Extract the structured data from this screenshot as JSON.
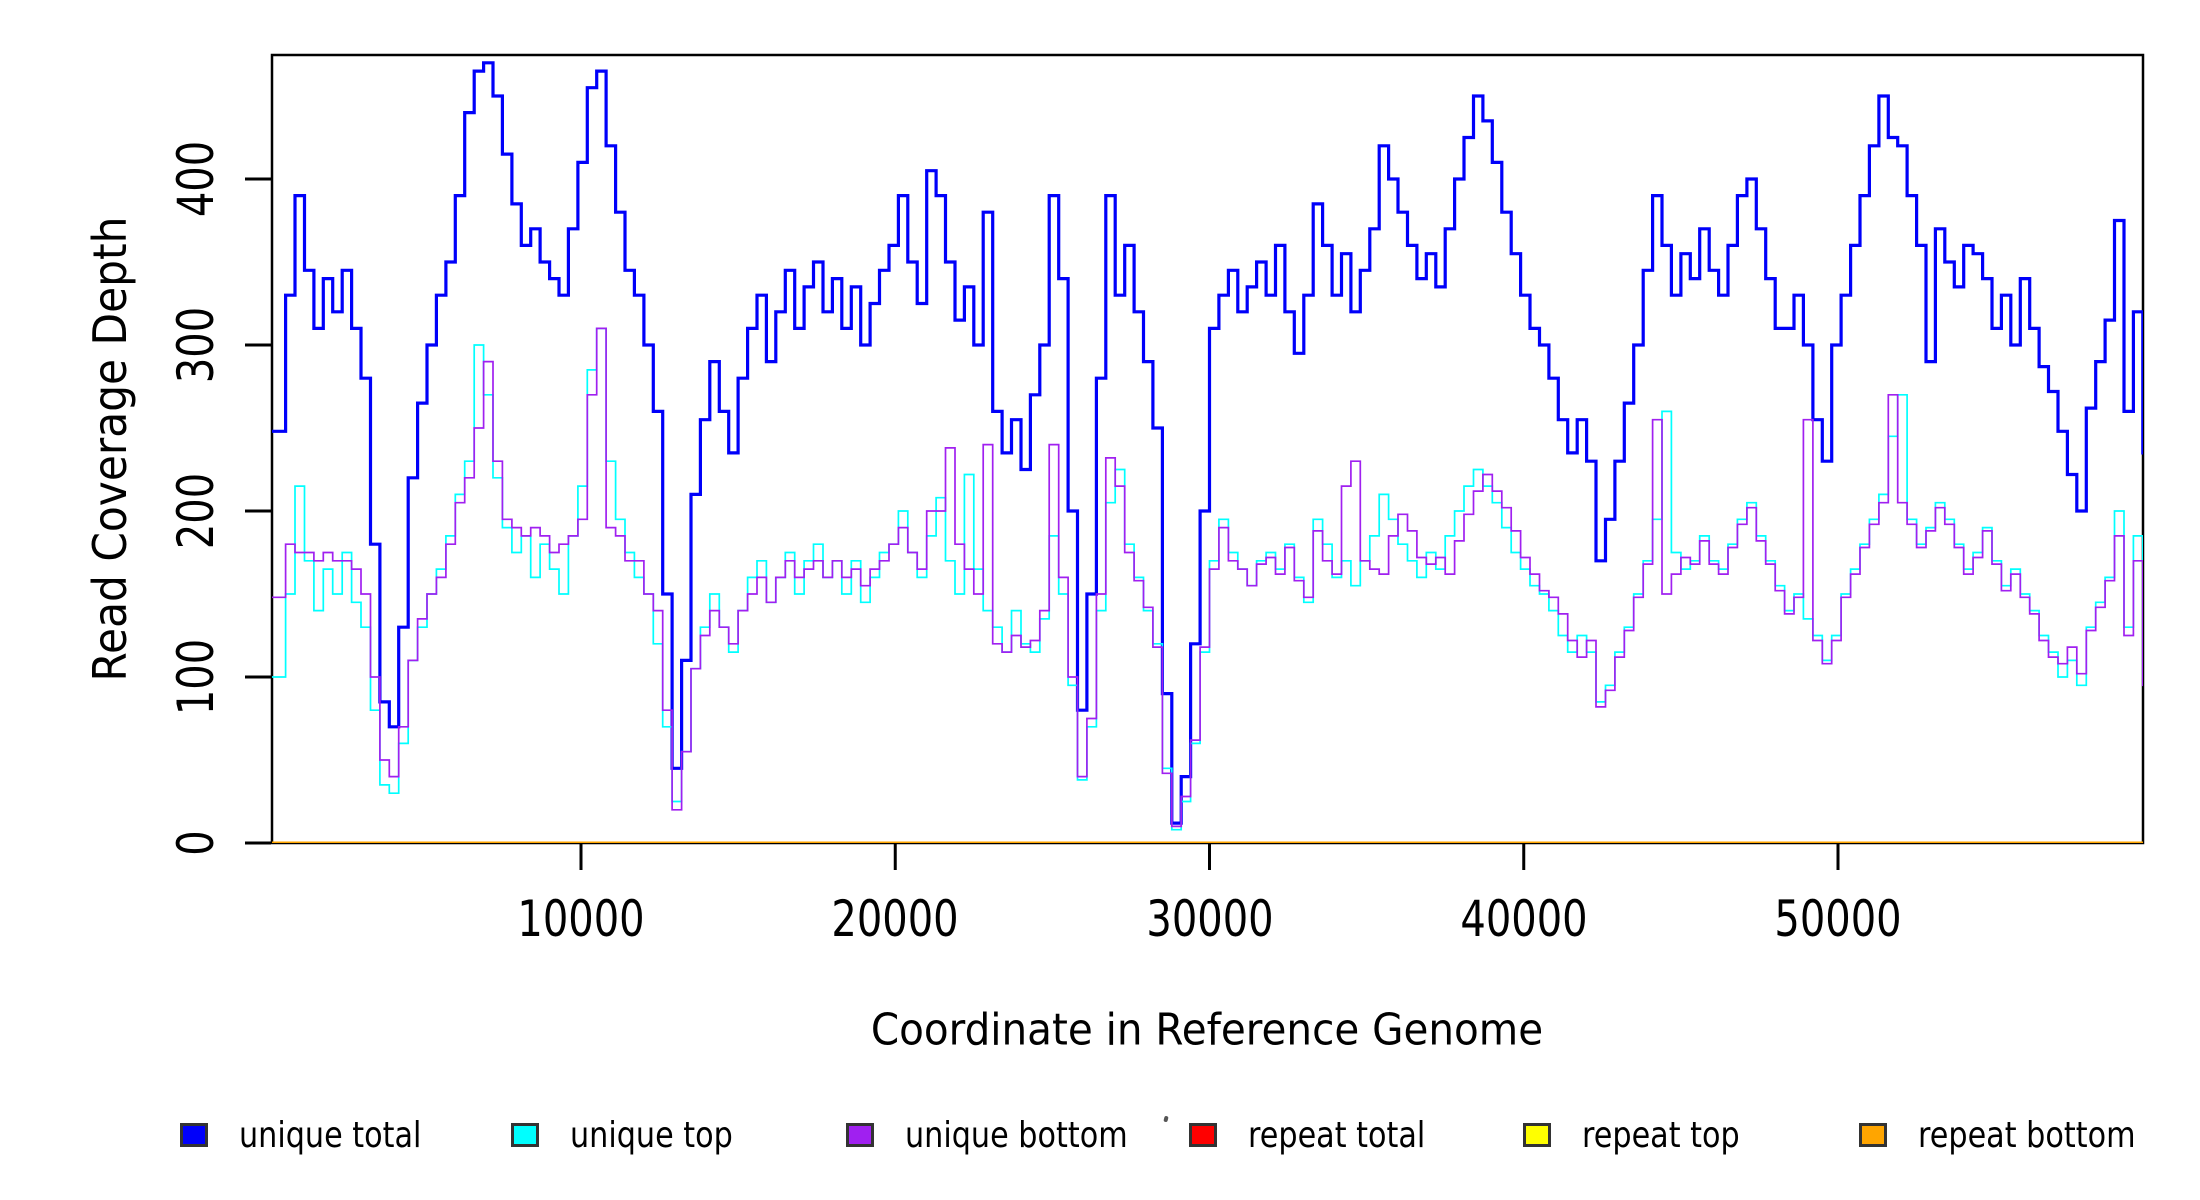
{
  "chart_data": {
    "type": "line",
    "subtype": "step",
    "title": "",
    "xlabel": "Coordinate in Reference Genome",
    "ylabel": "Read Coverage Depth",
    "xlim": [
      0,
      59700
    ],
    "ylim": [
      0,
      475
    ],
    "x_ticks": [
      10000,
      20000,
      30000,
      40000,
      50000
    ],
    "y_ticks": [
      0,
      100,
      200,
      300,
      400
    ],
    "grid": false,
    "background": "#FFFFFF",
    "axis_color": "#000000",
    "legend_position": "bottom",
    "x_start": 300,
    "x_step": 300,
    "series": [
      {
        "name": "unique total",
        "color": "#0000FA",
        "line_width": 3.2,
        "values": [
          248,
          330,
          390,
          345,
          310,
          340,
          320,
          345,
          310,
          280,
          180,
          85,
          70,
          130,
          220,
          265,
          300,
          330,
          350,
          390,
          440,
          465,
          470,
          450,
          415,
          385,
          360,
          370,
          350,
          340,
          330,
          370,
          410,
          455,
          465,
          420,
          380,
          345,
          330,
          300,
          260,
          150,
          45,
          110,
          210,
          255,
          290,
          260,
          235,
          280,
          310,
          330,
          290,
          320,
          345,
          310,
          335,
          350,
          320,
          340,
          310,
          335,
          300,
          325,
          345,
          360,
          390,
          350,
          325,
          405,
          390,
          350,
          315,
          335,
          300,
          380,
          260,
          235,
          255,
          225,
          270,
          300,
          390,
          340,
          200,
          80,
          150,
          280,
          390,
          330,
          360,
          320,
          290,
          250,
          90,
          12,
          40,
          120,
          200,
          310,
          330,
          345,
          320,
          335,
          350,
          330,
          360,
          320,
          295,
          330,
          385,
          360,
          330,
          355,
          320,
          345,
          370,
          420,
          400,
          380,
          360,
          340,
          355,
          335,
          370,
          400,
          425,
          450,
          435,
          410,
          380,
          355,
          330,
          310,
          300,
          280,
          255,
          235,
          255,
          230,
          170,
          195,
          230,
          265,
          300,
          345,
          390,
          360,
          330,
          355,
          340,
          370,
          345,
          330,
          360,
          390,
          400,
          370,
          340,
          310,
          310,
          330,
          300,
          255,
          230,
          300,
          330,
          360,
          390,
          420,
          450,
          425,
          420,
          390,
          360,
          290,
          370,
          350,
          335,
          360,
          355,
          340,
          310,
          330,
          300,
          340,
          310,
          287,
          272,
          248,
          222,
          200,
          262,
          290,
          315,
          375,
          260,
          320,
          235
        ]
      },
      {
        "name": "unique top",
        "color": "#00FFFF",
        "line_width": 1.7,
        "values": [
          100,
          150,
          215,
          170,
          140,
          165,
          150,
          175,
          145,
          130,
          80,
          35,
          30,
          60,
          110,
          130,
          150,
          165,
          185,
          210,
          230,
          300,
          270,
          220,
          190,
          175,
          185,
          160,
          180,
          165,
          150,
          185,
          215,
          285,
          310,
          230,
          195,
          175,
          160,
          150,
          120,
          70,
          25,
          55,
          105,
          130,
          150,
          130,
          115,
          140,
          160,
          170,
          145,
          160,
          175,
          150,
          170,
          180,
          160,
          170,
          150,
          170,
          145,
          160,
          175,
          180,
          200,
          175,
          160,
          185,
          208,
          170,
          150,
          222,
          165,
          140,
          130,
          115,
          140,
          120,
          115,
          135,
          185,
          150,
          95,
          38,
          70,
          140,
          205,
          225,
          180,
          160,
          140,
          120,
          45,
          8,
          25,
          60,
          115,
          170,
          195,
          175,
          165,
          155,
          170,
          175,
          165,
          180,
          160,
          145,
          195,
          180,
          160,
          170,
          155,
          170,
          185,
          210,
          195,
          180,
          170,
          160,
          175,
          165,
          185,
          200,
          215,
          225,
          215,
          205,
          190,
          175,
          165,
          155,
          150,
          140,
          125,
          115,
          125,
          115,
          85,
          95,
          115,
          130,
          150,
          170,
          195,
          260,
          175,
          165,
          170,
          185,
          170,
          165,
          180,
          195,
          205,
          185,
          170,
          155,
          140,
          150,
          135,
          125,
          110,
          125,
          150,
          165,
          180,
          195,
          210,
          245,
          270,
          195,
          180,
          190,
          205,
          195,
          180,
          165,
          175,
          190,
          170,
          155,
          165,
          150,
          140,
          125,
          115,
          100,
          110,
          95,
          130,
          145,
          160,
          200,
          130,
          185,
          100
        ]
      },
      {
        "name": "unique bottom",
        "color": "#A020F0",
        "line_width": 1.7,
        "values": [
          148,
          180,
          175,
          175,
          170,
          175,
          170,
          170,
          165,
          150,
          100,
          50,
          40,
          70,
          110,
          135,
          150,
          160,
          180,
          205,
          220,
          250,
          290,
          230,
          195,
          190,
          185,
          190,
          185,
          175,
          180,
          185,
          195,
          270,
          310,
          190,
          185,
          170,
          170,
          150,
          140,
          80,
          20,
          55,
          105,
          125,
          140,
          130,
          120,
          140,
          150,
          160,
          145,
          160,
          170,
          160,
          165,
          170,
          160,
          170,
          160,
          165,
          155,
          165,
          170,
          180,
          190,
          175,
          165,
          200,
          200,
          238,
          180,
          165,
          150,
          240,
          120,
          115,
          125,
          118,
          122,
          140,
          240,
          160,
          100,
          40,
          75,
          150,
          232,
          215,
          175,
          158,
          142,
          118,
          42,
          10,
          28,
          62,
          118,
          165,
          190,
          170,
          165,
          155,
          168,
          172,
          162,
          178,
          158,
          148,
          188,
          170,
          162,
          215,
          230,
          170,
          165,
          162,
          185,
          198,
          188,
          172,
          168,
          172,
          162,
          182,
          198,
          212,
          222,
          212,
          202,
          188,
          172,
          162,
          152,
          148,
          138,
          122,
          112,
          122,
          82,
          92,
          112,
          128,
          148,
          168,
          255,
          150,
          162,
          172,
          168,
          182,
          168,
          162,
          178,
          192,
          202,
          182,
          168,
          152,
          138,
          148,
          255,
          122,
          108,
          122,
          148,
          162,
          178,
          192,
          205,
          270,
          205,
          192,
          178,
          188,
          202,
          192,
          178,
          162,
          172,
          188,
          168,
          152,
          162,
          148,
          138,
          122,
          112,
          108,
          118,
          102,
          128,
          142,
          158,
          185,
          125,
          170,
          95
        ]
      },
      {
        "name": "repeat total",
        "color": "#FF0000",
        "line_width": 3,
        "constant_value": 0
      },
      {
        "name": "repeat top",
        "color": "#FFFF00",
        "line_width": 3,
        "constant_value": 0
      },
      {
        "name": "repeat bottom",
        "color": "#FFA500",
        "line_width": 3,
        "constant_value": 0
      }
    ]
  }
}
